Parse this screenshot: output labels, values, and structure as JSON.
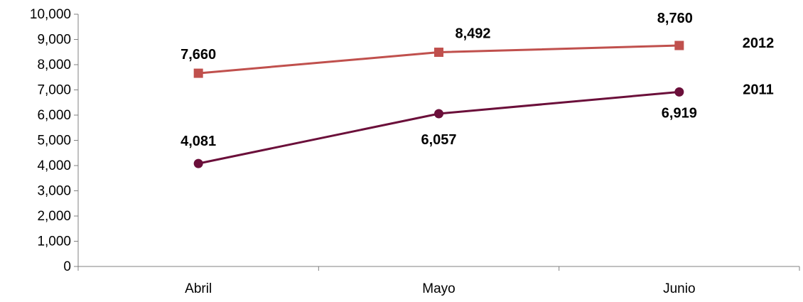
{
  "chart_data": {
    "type": "line",
    "categories": [
      "Abril",
      "Mayo",
      "Junio"
    ],
    "series": [
      {
        "name": "2012",
        "values": [
          7660,
          8492,
          8760
        ],
        "color": "#c0504d",
        "marker": "square",
        "value_labels": [
          "7,660",
          "8,492",
          "8,760"
        ]
      },
      {
        "name": "2011",
        "values": [
          4081,
          6057,
          6919
        ],
        "color": "#6b0f3a",
        "marker": "circle",
        "value_labels": [
          "4,081",
          "6,057",
          "6,919"
        ]
      }
    ],
    "ylim": [
      0,
      10000
    ],
    "yticks": [
      {
        "value": 0,
        "label": "0"
      },
      {
        "value": 1000,
        "label": "1,000"
      },
      {
        "value": 2000,
        "label": "2,000"
      },
      {
        "value": 3000,
        "label": "3,000"
      },
      {
        "value": 4000,
        "label": "4,000"
      },
      {
        "value": 5000,
        "label": "5,000"
      },
      {
        "value": 6000,
        "label": "6,000"
      },
      {
        "value": 7000,
        "label": "7,000"
      },
      {
        "value": 8000,
        "label": "8,000"
      },
      {
        "value": 9000,
        "label": "9,000"
      },
      {
        "value": 10000,
        "label": "10,000"
      }
    ],
    "grid": false,
    "legend": "series labels at right end of lines"
  }
}
